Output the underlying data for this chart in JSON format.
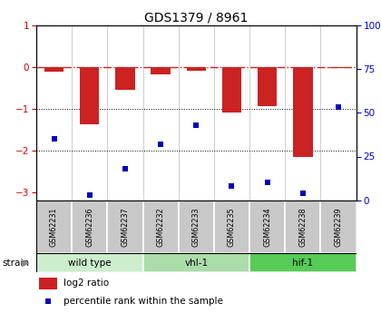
{
  "title": "GDS1379 / 8961",
  "samples": [
    "GSM62231",
    "GSM62236",
    "GSM62237",
    "GSM62232",
    "GSM62233",
    "GSM62235",
    "GSM62234",
    "GSM62238",
    "GSM62239"
  ],
  "log2_ratio": [
    -0.12,
    -1.38,
    -0.55,
    -0.18,
    -0.1,
    -1.1,
    -0.95,
    -2.15,
    -0.04
  ],
  "percentile_rank": [
    35,
    3,
    18,
    32,
    43,
    8,
    10,
    4,
    53
  ],
  "groups": [
    {
      "label": "wild type",
      "start": 0,
      "end": 3,
      "color": "#cceecc"
    },
    {
      "label": "vhl-1",
      "start": 3,
      "end": 6,
      "color": "#aaddaa"
    },
    {
      "label": "hif-1",
      "start": 6,
      "end": 9,
      "color": "#55cc55"
    }
  ],
  "ylim_left": [
    -3.2,
    1.0
  ],
  "ylim_right": [
    0,
    100
  ],
  "bar_color": "#cc2222",
  "dot_color": "#0000bb",
  "hline_color": "#cc2222",
  "bg_color": "#ffffff",
  "sample_bg": "#c8c8c8"
}
